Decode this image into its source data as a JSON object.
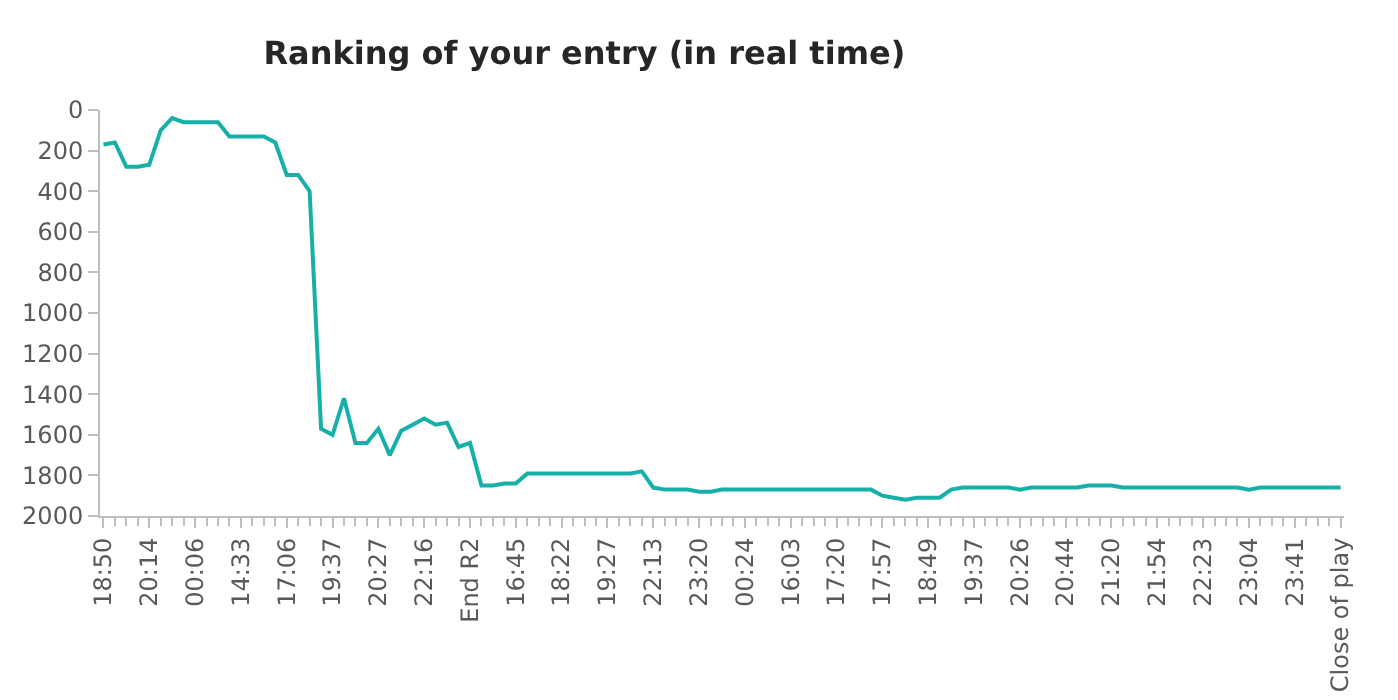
{
  "chart_data": {
    "type": "line",
    "title": "Ranking of your entry (in real time)",
    "categories": [
      "18:50",
      null,
      null,
      null,
      "20:14",
      null,
      null,
      null,
      "00:06",
      null,
      null,
      null,
      "14:33",
      null,
      null,
      null,
      "17:06",
      null,
      null,
      null,
      "19:37",
      null,
      null,
      null,
      "20:27",
      null,
      null,
      null,
      "22:16",
      null,
      null,
      null,
      "End R2",
      null,
      null,
      null,
      "16:45",
      null,
      null,
      null,
      "18:22",
      null,
      null,
      null,
      "19:27",
      null,
      null,
      null,
      "22:13",
      null,
      null,
      null,
      "23:20",
      null,
      null,
      null,
      "00:24",
      null,
      null,
      null,
      "16:03",
      null,
      null,
      null,
      "17:20",
      null,
      null,
      null,
      "17:57",
      null,
      null,
      null,
      "18:49",
      null,
      null,
      null,
      "19:37",
      null,
      null,
      null,
      "20:26",
      null,
      null,
      null,
      "20:44",
      null,
      null,
      null,
      "21:20",
      null,
      null,
      null,
      "21:54",
      null,
      null,
      null,
      "22:23",
      null,
      null,
      null,
      "23:04",
      null,
      null,
      null,
      "23:41",
      null,
      null,
      null,
      "Close of play"
    ],
    "series": [
      {
        "color": "#17b0a8",
        "values": [
          170,
          160,
          280,
          280,
          270,
          100,
          40,
          60,
          60,
          60,
          60,
          130,
          130,
          130,
          130,
          160,
          320,
          320,
          400,
          1570,
          1600,
          1420,
          1640,
          1640,
          1570,
          1700,
          1580,
          1550,
          1520,
          1550,
          1540,
          1660,
          1640,
          1850,
          1850,
          1840,
          1840,
          1790,
          1790,
          1790,
          1790,
          1790,
          1790,
          1790,
          1790,
          1790,
          1790,
          1780,
          1860,
          1870,
          1870,
          1870,
          1880,
          1880,
          1870,
          1870,
          1870,
          1870,
          1870,
          1870,
          1870,
          1870,
          1870,
          1870,
          1870,
          1870,
          1870,
          1870,
          1900,
          1910,
          1920,
          1910,
          1910,
          1910,
          1870,
          1860,
          1860,
          1860,
          1860,
          1860,
          1870,
          1860,
          1860,
          1860,
          1860,
          1860,
          1850,
          1850,
          1850,
          1860,
          1860,
          1860,
          1860,
          1860,
          1860,
          1860,
          1860,
          1860,
          1860,
          1860,
          1870,
          1860,
          1860,
          1860,
          1860,
          1860,
          1860,
          1860,
          1860
        ]
      }
    ],
    "ylim": [
      2000,
      0
    ],
    "yticks": [
      0,
      200,
      400,
      600,
      800,
      1000,
      1200,
      1400,
      1600,
      1800,
      2000
    ],
    "grid": false,
    "marker": "none",
    "line_style": "solid"
  }
}
